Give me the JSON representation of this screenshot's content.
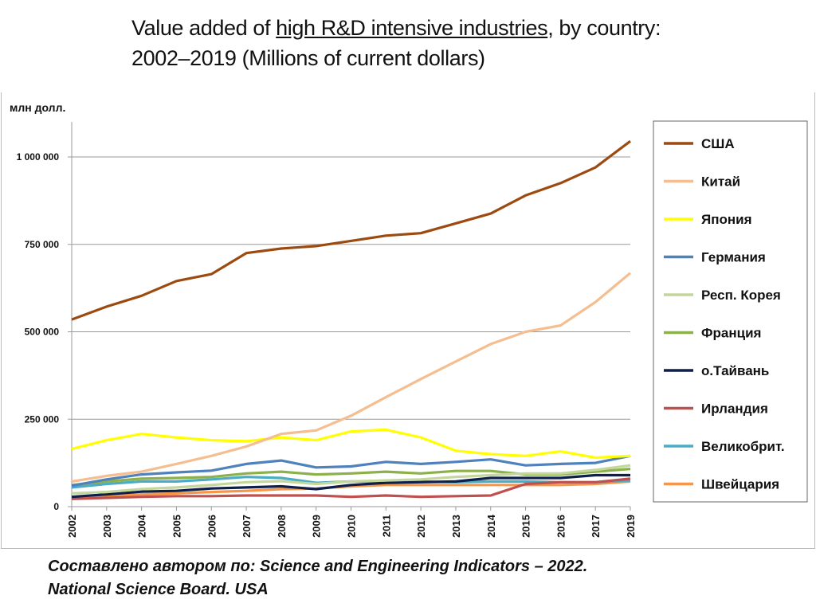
{
  "title": {
    "pre": "Value added of ",
    "underlined": "high R&D intensive industries",
    "post": ", by country:",
    "line2": "2002–2019  (Millions of current dollars)"
  },
  "footer": {
    "line1": "Составлено автором по: Science and Engineering Indicators – 2022.",
    "line2": "National Science Board. USA"
  },
  "chart_data": {
    "type": "line",
    "ylabel": "млн долл.",
    "ylim": [
      0,
      1100000
    ],
    "yticks": [
      0,
      250000,
      500000,
      750000,
      1000000
    ],
    "ytick_labels": [
      "0",
      "250 000",
      "500 000",
      "750 000",
      "1 000 000"
    ],
    "grid": true,
    "legend": "right",
    "categories": [
      "2002",
      "2003",
      "2004",
      "2005",
      "2006",
      "2007",
      "2008",
      "2009",
      "2010",
      "2011",
      "2012",
      "2013",
      "2014",
      "2015",
      "2016",
      "2017",
      "2019"
    ],
    "series": [
      {
        "name": "США",
        "color": "#9c4a10",
        "values": [
          535000,
          572000,
          603000,
          645000,
          665000,
          725000,
          738000,
          745000,
          760000,
          775000,
          782000,
          810000,
          838000,
          890000,
          925000,
          970000,
          1045000
        ]
      },
      {
        "name": "Китай",
        "color": "#f4be90",
        "values": [
          72000,
          88000,
          100000,
          122000,
          145000,
          172000,
          208000,
          218000,
          260000,
          313000,
          365000,
          415000,
          465000,
          500000,
          518000,
          585000,
          668000
        ]
      },
      {
        "name": "Япония",
        "color": "#ffff00",
        "values": [
          165000,
          190000,
          208000,
          198000,
          190000,
          187000,
          198000,
          190000,
          215000,
          220000,
          198000,
          160000,
          150000,
          145000,
          158000,
          140000,
          145000
        ]
      },
      {
        "name": "Германия",
        "color": "#4f81bd",
        "values": [
          60000,
          78000,
          92000,
          98000,
          103000,
          122000,
          132000,
          112000,
          115000,
          128000,
          122000,
          128000,
          135000,
          118000,
          122000,
          125000,
          145000
        ]
      },
      {
        "name": "Респ. Корея",
        "color": "#c3d69b",
        "values": [
          38000,
          42000,
          50000,
          55000,
          62000,
          70000,
          73000,
          65000,
          72000,
          75000,
          78000,
          85000,
          90000,
          95000,
          95000,
          105000,
          118000
        ]
      },
      {
        "name": "Франция",
        "color": "#8cb04a",
        "values": [
          62000,
          72000,
          80000,
          82000,
          85000,
          95000,
          100000,
          92000,
          95000,
          100000,
          95000,
          102000,
          102000,
          92000,
          92000,
          100000,
          108000
        ]
      },
      {
        "name": "о.Тайвань",
        "color": "#0d1f4a",
        "values": [
          28000,
          35000,
          43000,
          45000,
          52000,
          55000,
          58000,
          50000,
          62000,
          68000,
          70000,
          72000,
          82000,
          82000,
          82000,
          90000,
          90000
        ]
      },
      {
        "name": "Ирландия",
        "color": "#c0504d",
        "values": [
          22000,
          25000,
          28000,
          30000,
          30000,
          32000,
          32000,
          32000,
          28000,
          32000,
          28000,
          30000,
          32000,
          65000,
          70000,
          70000,
          80000
        ]
      },
      {
        "name": "Великобрит.",
        "color": "#4bacc6",
        "values": [
          55000,
          65000,
          72000,
          72000,
          78000,
          85000,
          82000,
          68000,
          72000,
          72000,
          72000,
          70000,
          72000,
          72000,
          70000,
          70000,
          75000
        ]
      },
      {
        "name": "Швейцария",
        "color": "#f79646",
        "values": [
          25000,
          30000,
          35000,
          38000,
          42000,
          45000,
          50000,
          52000,
          58000,
          62000,
          62000,
          62000,
          62000,
          62000,
          62000,
          65000,
          72000
        ]
      }
    ]
  }
}
